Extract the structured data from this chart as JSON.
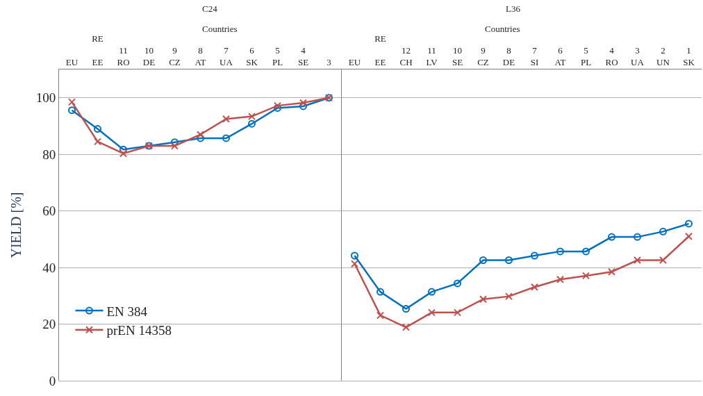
{
  "chart_data": [
    {
      "type": "line",
      "title": "C24",
      "ylabel": "YIELD [%]",
      "annotations": [
        "Countries"
      ],
      "categories": [
        "EU",
        "RE\n\nEE",
        "11\nRO",
        "10\nDE",
        "9\nCZ",
        "8\nAT",
        "7\nUA",
        "6\nSK",
        "5\nPL",
        "4\nSE",
        "3"
      ],
      "series": [
        {
          "name": "EN 384",
          "color": "#0070c0",
          "marker": "circle",
          "values": [
            95.6,
            89,
            81.7,
            83,
            84.3,
            85.7,
            85.7,
            90.8,
            96.4,
            97,
            100
          ]
        },
        {
          "name": "prEN 14358",
          "color": "#c0504d",
          "marker": "cross",
          "values": [
            98.5,
            84.5,
            80.3,
            83,
            83,
            87,
            92.5,
            93.4,
            97.2,
            98.2,
            100
          ]
        }
      ],
      "ylim": [
        0,
        110
      ],
      "yticks": [
        0,
        20,
        40,
        60,
        80,
        100
      ],
      "grid": "y",
      "legend": "bottom left"
    },
    {
      "type": "line",
      "title": "L36",
      "annotations": [
        "Countries"
      ],
      "categories": [
        "EU",
        "RE\n\nEE",
        "12\nCH",
        "11\nLV",
        "10\nSE",
        "9\nCZ",
        "8\nDE",
        "7\nSI",
        "6\nAT",
        "5\nPL",
        "4\nRO",
        "3\nUA",
        "2\nUN",
        "1\nSK"
      ],
      "series": [
        {
          "color": "#0070c0",
          "marker": "circle",
          "values": [
            44.2,
            31.4,
            25.4,
            31.4,
            34.4,
            42.6,
            42.6,
            44.2,
            45.7,
            45.7,
            50.8,
            50.8,
            52.7,
            55.5
          ]
        },
        {
          "color": "#c0504d",
          "marker": "cross",
          "values": [
            41.3,
            23.1,
            18.9,
            24.1,
            24.1,
            28.8,
            29.8,
            33.1,
            35.8,
            37.1,
            38.5,
            42.6,
            42.6,
            51
          ]
        }
      ],
      "ylim": [
        0,
        110
      ],
      "yticks": [
        0,
        20,
        40,
        60,
        80,
        100
      ],
      "grid": "y",
      "tick_labels": "x"
    }
  ]
}
